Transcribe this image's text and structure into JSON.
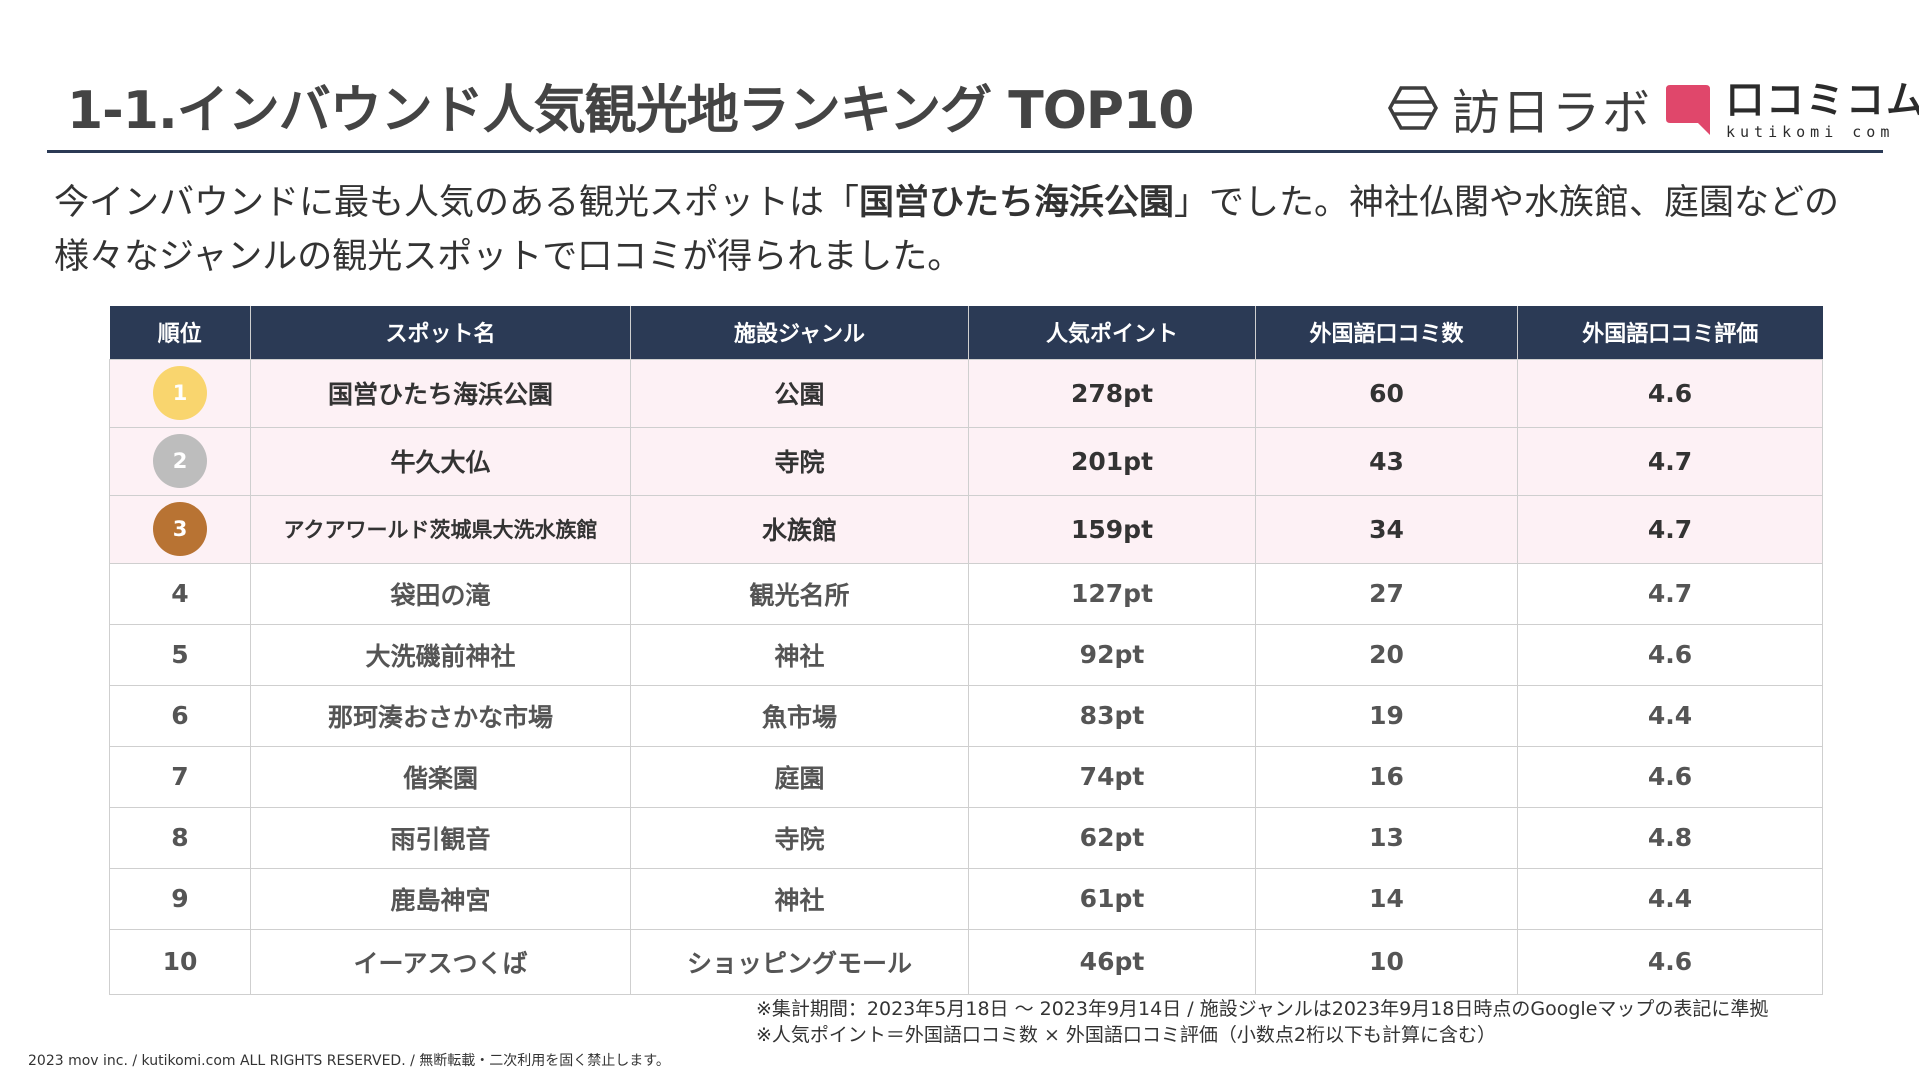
{
  "title": "1-1.インバウンド人気観光地ランキング TOP10",
  "logos": {
    "houjin_lab": "訪日ラボ",
    "kutikomi_jp": "口コミコム",
    "kutikomi_en": "kutikomi com",
    "houjin_icon": "hexagon-icon",
    "kutikomi_icon": "speech-bubble-icon"
  },
  "lead": {
    "before": "今インバウンドに最も人気のある観光スポットは「",
    "highlight": "国営ひたち海浜公園",
    "after": "」でした。神社仏閣や水族館、庭園などの様々なジャンルの観光スポットで口コミが得られました。"
  },
  "table": {
    "headers": [
      "順位",
      "スポット名",
      "施設ジャンル",
      "人気ポイント",
      "外国語口コミ数",
      "外国語口コミ評価"
    ],
    "rows": [
      {
        "rank": "1",
        "spot": "国営ひたち海浜公園",
        "genre": "公園",
        "points": "278pt",
        "reviews": "60",
        "rating": "4.6"
      },
      {
        "rank": "2",
        "spot": "牛久大仏",
        "genre": "寺院",
        "points": "201pt",
        "reviews": "43",
        "rating": "4.7"
      },
      {
        "rank": "3",
        "spot": "アクアワールド茨城県大洗水族館",
        "genre": "水族館",
        "points": "159pt",
        "reviews": "34",
        "rating": "4.7"
      },
      {
        "rank": "4",
        "spot": "袋田の滝",
        "genre": "観光名所",
        "points": "127pt",
        "reviews": "27",
        "rating": "4.7"
      },
      {
        "rank": "5",
        "spot": "大洗磯前神社",
        "genre": "神社",
        "points": "92pt",
        "reviews": "20",
        "rating": "4.6"
      },
      {
        "rank": "6",
        "spot": "那珂湊おさかな市場",
        "genre": "魚市場",
        "points": "83pt",
        "reviews": "19",
        "rating": "4.4"
      },
      {
        "rank": "7",
        "spot": "偕楽園",
        "genre": "庭園",
        "points": "74pt",
        "reviews": "16",
        "rating": "4.6"
      },
      {
        "rank": "8",
        "spot": "雨引観音",
        "genre": "寺院",
        "points": "62pt",
        "reviews": "13",
        "rating": "4.8"
      },
      {
        "rank": "9",
        "spot": "鹿島神宮",
        "genre": "神社",
        "points": "61pt",
        "reviews": "14",
        "rating": "4.4"
      },
      {
        "rank": "10",
        "spot": "イーアスつくば",
        "genre": "ショッピングモール",
        "points": "46pt",
        "reviews": "10",
        "rating": "4.6"
      }
    ]
  },
  "notes": [
    "※集計期間：2023年5月18日 〜 2023年9月14日 / 施設ジャンルは2023年9月18日時点のGoogleマップの表記に準拠",
    "※人気ポイント＝外国語口コミ数 × 外国語口コミ評価（小数点2桁以下も計算に含む）"
  ],
  "copyright": "2023 mov inc. / kutikomi.com ALL RIGHTS RESERVED. / 無断転載・二次利用を固く禁止します。",
  "colors": {
    "header_bg": "#2b3a55",
    "top3_row_bg": "#fdf1f5",
    "medal_gold": "#f9d56e",
    "medal_silver": "#bdbdbd",
    "medal_bronze": "#b87333",
    "kutikomi_brand": "#e0476b"
  }
}
